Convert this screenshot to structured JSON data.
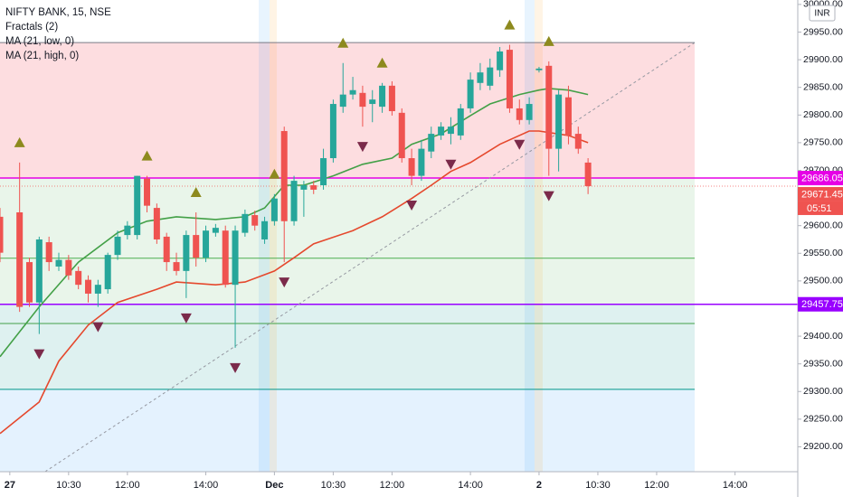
{
  "chart_data": {
    "type": "candlestick",
    "title": "NIFTY BANK, 15, NSE",
    "currency": "INR",
    "countdown": "05:51",
    "xlim": [
      0,
      81.4
    ],
    "ylim": [
      29155,
      30008
    ],
    "yticks": [
      {
        "value": 29200,
        "label": "29200.00"
      },
      {
        "value": 29250,
        "label": "29250.00"
      },
      {
        "value": 29300,
        "label": "29300.00"
      },
      {
        "value": 29350,
        "label": "29350.00"
      },
      {
        "value": 29400,
        "label": "29400.00"
      },
      {
        "value": 29450,
        "label": "29450.00"
      },
      {
        "value": 29500,
        "label": "29500.00"
      },
      {
        "value": 29550,
        "label": "29550.00"
      },
      {
        "value": 29600,
        "label": "29600.00"
      },
      {
        "value": 29650,
        "label": "29650.00"
      },
      {
        "value": 29700,
        "label": "29700.00"
      },
      {
        "value": 29750,
        "label": "29750.00"
      },
      {
        "value": 29800,
        "label": "29800.00"
      },
      {
        "value": 29850,
        "label": "29850.00"
      },
      {
        "value": 29900,
        "label": "29900.00"
      },
      {
        "value": 29950,
        "label": "29950.00"
      },
      {
        "value": 30000,
        "label": "30000.00"
      }
    ],
    "xticks": [
      {
        "value": 1,
        "label": "27"
      },
      {
        "value": 7,
        "label": "10:30"
      },
      {
        "value": 13,
        "label": "12:00"
      },
      {
        "value": 21,
        "label": "14:00"
      },
      {
        "value": 28,
        "label": "Dec"
      },
      {
        "value": 34,
        "label": "10:30"
      },
      {
        "value": 40,
        "label": "12:00"
      },
      {
        "value": 48,
        "label": "14:00"
      },
      {
        "value": 55,
        "label": "2"
      },
      {
        "value": 61,
        "label": "10:30"
      },
      {
        "value": 67,
        "label": "12:00"
      },
      {
        "value": 75,
        "label": "14:00"
      }
    ],
    "up_color": "#26a69a",
    "down_color": "#ef5350",
    "x": [
      0,
      2,
      3,
      4,
      5,
      6,
      7,
      8,
      9,
      10,
      11,
      12,
      13,
      14,
      15,
      16,
      17,
      18,
      19,
      20,
      21,
      22,
      23,
      24,
      25,
      26,
      27,
      28,
      29,
      30,
      31,
      32,
      33,
      34,
      35,
      36,
      37,
      38,
      39,
      40,
      41,
      42,
      43,
      44,
      45,
      46,
      47,
      48,
      49,
      50,
      51,
      52,
      53,
      54,
      55,
      56,
      57,
      58,
      59,
      60
    ],
    "open": [
      29616,
      29624,
      29534,
      29461,
      29570,
      29526,
      29538,
      29518,
      29502,
      29477,
      29485,
      29547,
      29583,
      29583,
      29685,
      29632,
      29580,
      29534,
      29518,
      29583,
      29542,
      29587,
      29591,
      29493,
      29587,
      29619,
      29575,
      29608,
      29771,
      29608,
      29665,
      29673,
      29673,
      29722,
      29815,
      29837,
      29840,
      29820,
      29815,
      29853,
      29804,
      29722,
      29690,
      29734,
      29763,
      29766,
      29763,
      29812,
      29858,
      29853,
      29881,
      29918,
      29812,
      29791,
      29881,
      29889,
      29739,
      29832,
      29766,
      29714
    ],
    "high": [
      29632,
      29714,
      29542,
      29580,
      29580,
      29551,
      29547,
      29526,
      29510,
      29502,
      29551,
      29591,
      29608,
      29690,
      29690,
      29640,
      29587,
      29551,
      29591,
      29624,
      29600,
      29603,
      29600,
      29600,
      29629,
      29627,
      29616,
      29657,
      29779,
      29690,
      29681,
      29681,
      29739,
      29828,
      29894,
      29869,
      29853,
      29845,
      29858,
      29861,
      29812,
      29739,
      29755,
      29779,
      29787,
      29796,
      29820,
      29877,
      29894,
      29902,
      29923,
      29927,
      29828,
      29832,
      29887,
      29897,
      29845,
      29853,
      29779,
      29722
    ],
    "low": [
      29534,
      29444,
      29453,
      29404,
      29518,
      29518,
      29502,
      29485,
      29461,
      29453,
      29477,
      29538,
      29575,
      29575,
      29624,
      29567,
      29518,
      29510,
      29469,
      29526,
      29534,
      29580,
      29488,
      29379,
      29580,
      29591,
      29567,
      29600,
      29534,
      29600,
      29616,
      29657,
      29665,
      29714,
      29804,
      29828,
      29779,
      29787,
      29804,
      29799,
      29714,
      29673,
      29681,
      29722,
      29755,
      29747,
      29755,
      29804,
      29845,
      29845,
      29869,
      29804,
      29783,
      29783,
      29877,
      29690,
      29698,
      29747,
      29730,
      29657
    ],
    "close": [
      29551,
      29453,
      29461,
      29575,
      29534,
      29538,
      29510,
      29493,
      29477,
      29493,
      29547,
      29580,
      29600,
      29690,
      29636,
      29575,
      29534,
      29518,
      29583,
      29542,
      29591,
      29596,
      29493,
      29591,
      29621,
      29600,
      29608,
      29649,
      29608,
      29681,
      29673,
      29665,
      29722,
      29820,
      29837,
      29845,
      29815,
      29828,
      29853,
      29807,
      29722,
      29690,
      29739,
      29766,
      29779,
      29779,
      29812,
      29864,
      29877,
      29886,
      29915,
      29812,
      29791,
      29820,
      29884,
      29739,
      29837,
      29763,
      29739,
      29671.45
    ],
    "series": [
      {
        "name": "MA (21, low, 0)",
        "color": "#e5482d",
        "x": [
          0,
          4,
          6,
          9,
          12,
          16,
          18,
          22,
          25,
          28,
          30,
          32,
          36,
          39,
          42,
          44,
          46,
          48,
          51,
          54,
          55,
          58,
          60
        ],
        "values": [
          29224,
          29281,
          29355,
          29420,
          29461,
          29485,
          29498,
          29493,
          29498,
          29518,
          29542,
          29567,
          29591,
          29616,
          29649,
          29673,
          29698,
          29714,
          29747,
          29771,
          29771,
          29763,
          29750
        ]
      },
      {
        "name": "MA (21, high, 0)",
        "color": "#43a047",
        "x": [
          0,
          4,
          8,
          12,
          15,
          18,
          22,
          25,
          27,
          29,
          31,
          34,
          37,
          40,
          42,
          45,
          48,
          50,
          53,
          55,
          56,
          58,
          60
        ],
        "values": [
          29363,
          29453,
          29534,
          29587,
          29608,
          29616,
          29611,
          29616,
          29632,
          29673,
          29673,
          29690,
          29711,
          29722,
          29747,
          29766,
          29799,
          29820,
          29837,
          29845,
          29848,
          29845,
          29837
        ]
      }
    ],
    "fractals": {
      "name": "Fractals (2)",
      "up_color": "#8d8a1e",
      "down_color": "#7b2a4a",
      "up": [
        2,
        15,
        20,
        28,
        35,
        39,
        52,
        56
      ],
      "down": [
        4,
        10,
        19,
        24,
        29,
        37,
        42,
        46,
        53,
        56
      ]
    },
    "levels": [
      {
        "value": 29931,
        "color": "#787b86",
        "fill": "rgba(242,54,69,0.17)"
      },
      {
        "value": 29686.05,
        "color": "#e600e6",
        "fill": "rgba(76,175,80,0.12)",
        "tag": true
      },
      {
        "value": 29541,
        "color": "#4caf50",
        "fill": "rgba(76,175,80,0.12)"
      },
      {
        "value": 29457.75,
        "color": "#9900ff",
        "fill": "rgba(0,150,136,0.13)",
        "tag": true
      },
      {
        "value": 29423,
        "color": "#43a047",
        "fill": "rgba(0,150,136,0.13)"
      },
      {
        "value": 29304,
        "color": "#009688",
        "fill": "rgba(33,150,243,0.12)"
      }
    ],
    "trend_line": {
      "x": [
        4.6,
        70.9
      ],
      "values": [
        29155,
        29931
      ]
    }
  }
}
